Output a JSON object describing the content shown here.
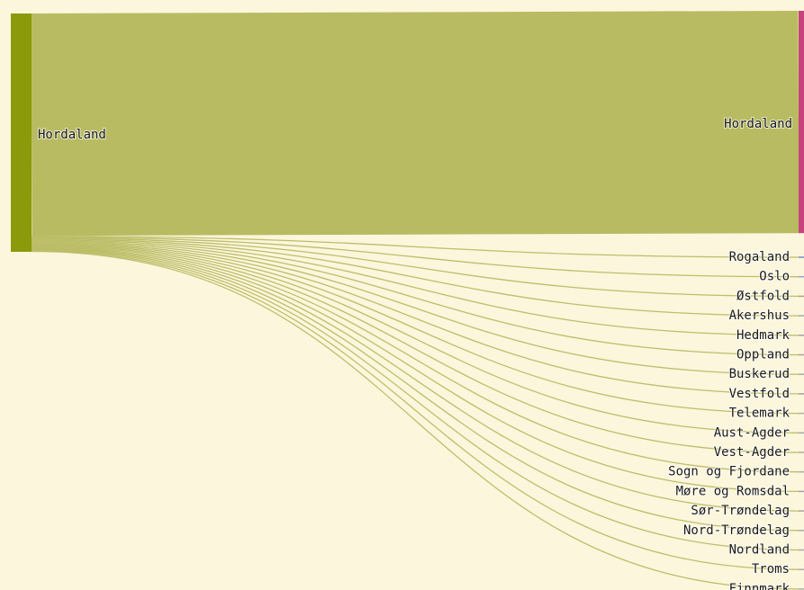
{
  "chart_data": {
    "type": "sankey",
    "source": "Hordaland",
    "source_color": "#8a9a0a",
    "link_color": "#b9bb62",
    "links": [
      {
        "target": "Hordaland",
        "value": 250,
        "color": "#c8427e"
      },
      {
        "target": "Rogaland",
        "value": 1,
        "color": "#6f8fc8"
      },
      {
        "target": "Oslo",
        "value": 1,
        "color": "#9aa4c8"
      },
      {
        "target": "Østfold",
        "value": 1,
        "color": "#b0a080"
      },
      {
        "target": "Akershus",
        "value": 1,
        "color": "#9ab0a0"
      },
      {
        "target": "Hedmark",
        "value": 1,
        "color": "#a0a0b0"
      },
      {
        "target": "Oppland",
        "value": 1,
        "color": "#b0a0a0"
      },
      {
        "target": "Buskerud",
        "value": 1,
        "color": "#a0b0a0"
      },
      {
        "target": "Vestfold",
        "value": 1,
        "color": "#a0a0a0"
      },
      {
        "target": "Telemark",
        "value": 1,
        "color": "#b0b0a0"
      },
      {
        "target": "Aust-Agder",
        "value": 1,
        "color": "#a0a8b0"
      },
      {
        "target": "Vest-Agder",
        "value": 1,
        "color": "#b0a8a0"
      },
      {
        "target": "Sogn og Fjordane",
        "value": 1,
        "color": "#a8b0a0"
      },
      {
        "target": "Møre og Romsdal",
        "value": 1,
        "color": "#a0a0b0"
      },
      {
        "target": "Sør-Trøndelag",
        "value": 1,
        "color": "#b0a0a8"
      },
      {
        "target": "Nord-Trøndelag",
        "value": 1,
        "color": "#a0b0b0"
      },
      {
        "target": "Nordland",
        "value": 1,
        "color": "#a8a8a8"
      },
      {
        "target": "Troms",
        "value": 1,
        "color": "#b0a8b0"
      },
      {
        "target": "Finnmark",
        "value": 1,
        "color": "#a8b0a8"
      }
    ]
  }
}
